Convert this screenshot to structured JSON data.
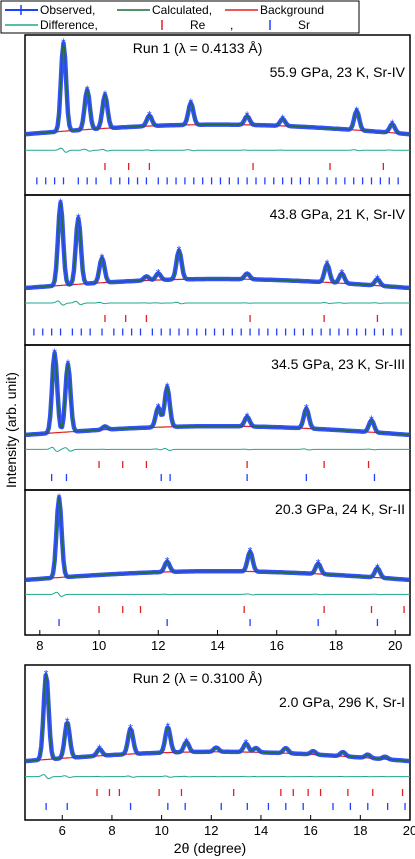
{
  "legend": {
    "items": [
      {
        "label": "Observed,",
        "kind": "observed"
      },
      {
        "label": "Calculated,",
        "kind": "calculated"
      },
      {
        "label": "Background",
        "kind": "background"
      },
      {
        "label": "Difference,",
        "kind": "difference"
      },
      {
        "label": "Re",
        "kind": "re_tick"
      },
      {
        "label": ",",
        "kind": "sep"
      },
      {
        "label": "Sr",
        "kind": "sr_tick"
      }
    ]
  },
  "colors": {
    "observed": "#1f3fff",
    "calculated": "#1f6b3a",
    "background": "#e02020",
    "difference": "#20a88c",
    "re_tick": "#e02020",
    "sr_tick": "#1f3fff"
  },
  "ylabel": "Intensity (arb. unit)",
  "xlabel": "2θ (degree)",
  "chart_data": [
    {
      "type": "line",
      "run_label": "Run 1 (λ = 0.4133 Å)",
      "label": "55.9 GPa, 23 K, Sr-IV",
      "xlim": [
        7.5,
        20.5
      ],
      "x_ticks": [],
      "peaks": [
        [
          8.8,
          1.0
        ],
        [
          9.6,
          0.45
        ],
        [
          10.2,
          0.38
        ],
        [
          11.7,
          0.12
        ],
        [
          13.1,
          0.25
        ],
        [
          15.0,
          0.1
        ],
        [
          16.2,
          0.08
        ],
        [
          18.7,
          0.22
        ],
        [
          19.9,
          0.1
        ]
      ],
      "re_ticks": [
        10.2,
        11.0,
        11.7,
        15.2,
        17.8,
        19.6
      ],
      "sr_ticks": [
        7.9,
        8.2,
        8.5,
        8.8,
        9.3,
        9.6,
        9.9,
        10.4,
        10.7,
        11.0,
        11.3,
        11.6,
        12.0,
        12.3,
        12.6,
        12.9,
        13.2,
        13.5,
        13.8,
        14.1,
        14.4,
        14.7,
        15.0,
        15.3,
        15.6,
        15.9,
        16.2,
        16.5,
        16.8,
        17.1,
        17.4,
        17.7,
        18.0,
        18.3,
        18.6,
        18.9,
        19.2,
        19.5,
        19.8,
        20.1
      ]
    },
    {
      "type": "line",
      "run_label": "",
      "label": "43.8 GPa, 21 K, Sr-IV",
      "xlim": [
        7.5,
        20.5
      ],
      "x_ticks": [],
      "peaks": [
        [
          8.7,
          1.0
        ],
        [
          9.3,
          0.8
        ],
        [
          10.1,
          0.3
        ],
        [
          11.6,
          0.05
        ],
        [
          12.0,
          0.08
        ],
        [
          12.7,
          0.35
        ],
        [
          15.0,
          0.07
        ],
        [
          17.7,
          0.22
        ],
        [
          18.2,
          0.12
        ],
        [
          19.4,
          0.08
        ]
      ],
      "re_ticks": [
        10.2,
        10.9,
        11.6,
        15.1,
        17.6,
        19.4
      ],
      "sr_ticks": [
        7.8,
        8.1,
        8.4,
        8.7,
        9.1,
        9.4,
        9.7,
        10.1,
        10.5,
        10.8,
        11.1,
        11.4,
        11.8,
        12.1,
        12.4,
        12.7,
        13.0,
        13.3,
        13.6,
        13.9,
        14.2,
        14.5,
        14.8,
        15.1,
        15.4,
        15.7,
        16.0,
        16.3,
        16.6,
        16.9,
        17.2,
        17.5,
        17.8,
        18.1,
        18.4,
        18.7,
        19.0,
        19.3,
        19.6,
        19.9,
        20.2
      ]
    },
    {
      "type": "line",
      "run_label": "",
      "label": "34.5 GPa, 23 K, Sr-III",
      "xlim": [
        7.5,
        20.5
      ],
      "x_ticks": [],
      "peaks": [
        [
          8.5,
          1.0
        ],
        [
          8.95,
          0.85
        ],
        [
          10.2,
          0.04
        ],
        [
          12.0,
          0.25
        ],
        [
          12.3,
          0.5
        ],
        [
          15.0,
          0.12
        ],
        [
          17.0,
          0.25
        ],
        [
          19.2,
          0.15
        ]
      ],
      "re_ticks": [
        10.0,
        10.8,
        11.6,
        15.0,
        17.6,
        19.1
      ],
      "sr_ticks": [
        8.4,
        8.9,
        12.1,
        12.4,
        15.0,
        17.0,
        19.3
      ]
    },
    {
      "type": "line",
      "run_label": "",
      "label": "20.3 GPa, 24 K, Sr-II",
      "xlim": [
        7.5,
        20.5
      ],
      "x_ticks": [
        8,
        10,
        12,
        14,
        16,
        18,
        20
      ],
      "peaks": [
        [
          8.65,
          1.0
        ],
        [
          12.3,
          0.13
        ],
        [
          15.1,
          0.25
        ],
        [
          17.4,
          0.13
        ],
        [
          19.4,
          0.12
        ]
      ],
      "re_ticks": [
        10.0,
        10.8,
        11.4,
        14.9,
        17.6,
        19.2,
        20.3
      ],
      "sr_ticks": [
        8.65,
        12.3,
        15.1,
        17.4,
        19.4
      ]
    },
    {
      "type": "line",
      "run_label": "Run 2 (λ = 0.3100 Å)",
      "label": "2.0 GPa, 296 K, Sr-I",
      "xlim": [
        4.5,
        20
      ],
      "x_ticks": [
        6,
        8,
        10,
        12,
        14,
        16,
        18,
        20
      ],
      "peaks": [
        [
          5.35,
          1.0
        ],
        [
          6.2,
          0.42
        ],
        [
          7.5,
          0.08
        ],
        [
          8.75,
          0.3
        ],
        [
          10.25,
          0.3
        ],
        [
          11.0,
          0.12
        ],
        [
          12.2,
          0.05
        ],
        [
          13.4,
          0.1
        ],
        [
          13.8,
          0.05
        ],
        [
          15.0,
          0.06
        ],
        [
          16.1,
          0.04
        ],
        [
          17.3,
          0.05
        ],
        [
          18.3,
          0.04
        ],
        [
          19.0,
          0.03
        ]
      ],
      "re_ticks": [
        7.4,
        7.9,
        8.3,
        9.9,
        10.8,
        12.9,
        14.8,
        15.3,
        15.9,
        16.4,
        17.5,
        18.5,
        19.7
      ],
      "sr_ticks": [
        5.35,
        6.2,
        8.75,
        10.25,
        10.95,
        12.4,
        13.45,
        14.3,
        15.0,
        15.7,
        16.9,
        17.6,
        18.3,
        19.1,
        19.8
      ]
    }
  ]
}
